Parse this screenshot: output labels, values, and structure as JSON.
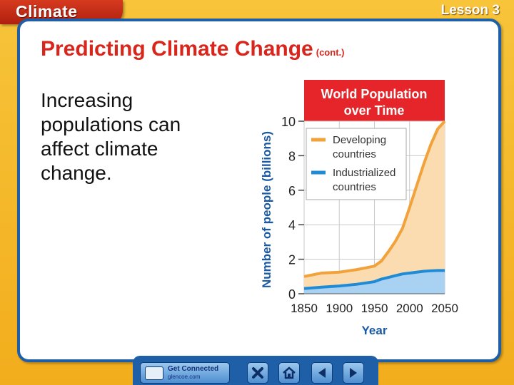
{
  "header": {
    "chapter": "Climate",
    "lesson": "Lesson 3"
  },
  "slide": {
    "title": "Predicting Climate Change",
    "title_suffix": "(cont.)",
    "body": "Increasing populations can affect climate change."
  },
  "footer": {
    "get_connected": "Get Connected",
    "url": "glencoe.com"
  },
  "colors": {
    "developing": "#f2a23a",
    "industrialized": "#1f8bd6",
    "title_red": "#d9261c"
  },
  "chart_data": {
    "type": "area",
    "title": "World Population over Time",
    "xlabel": "Year",
    "ylabel": "Number of people (billions)",
    "xlim": [
      1850,
      2050
    ],
    "ylim": [
      0,
      10
    ],
    "xticks": [
      1850,
      1900,
      1950,
      2000,
      2050
    ],
    "yticks": [
      0,
      2,
      4,
      6,
      8,
      10
    ],
    "legend": "top-left",
    "stacked": true,
    "x": [
      1850,
      1875,
      1900,
      1925,
      1950,
      1960,
      1970,
      1980,
      1990,
      2000,
      2010,
      2020,
      2030,
      2040,
      2050
    ],
    "series": [
      {
        "name": "Industrialized countries",
        "color": "#1f8bd6",
        "values": [
          0.3,
          0.38,
          0.45,
          0.55,
          0.7,
          0.85,
          0.95,
          1.05,
          1.15,
          1.2,
          1.25,
          1.3,
          1.33,
          1.35,
          1.35
        ]
      },
      {
        "name": "Developing countries",
        "color": "#f2a23a",
        "values": [
          0.7,
          0.82,
          0.8,
          0.85,
          0.9,
          1.05,
          1.5,
          2.0,
          2.65,
          3.8,
          5.0,
          6.2,
          7.3,
          8.2,
          8.65
        ]
      }
    ]
  }
}
